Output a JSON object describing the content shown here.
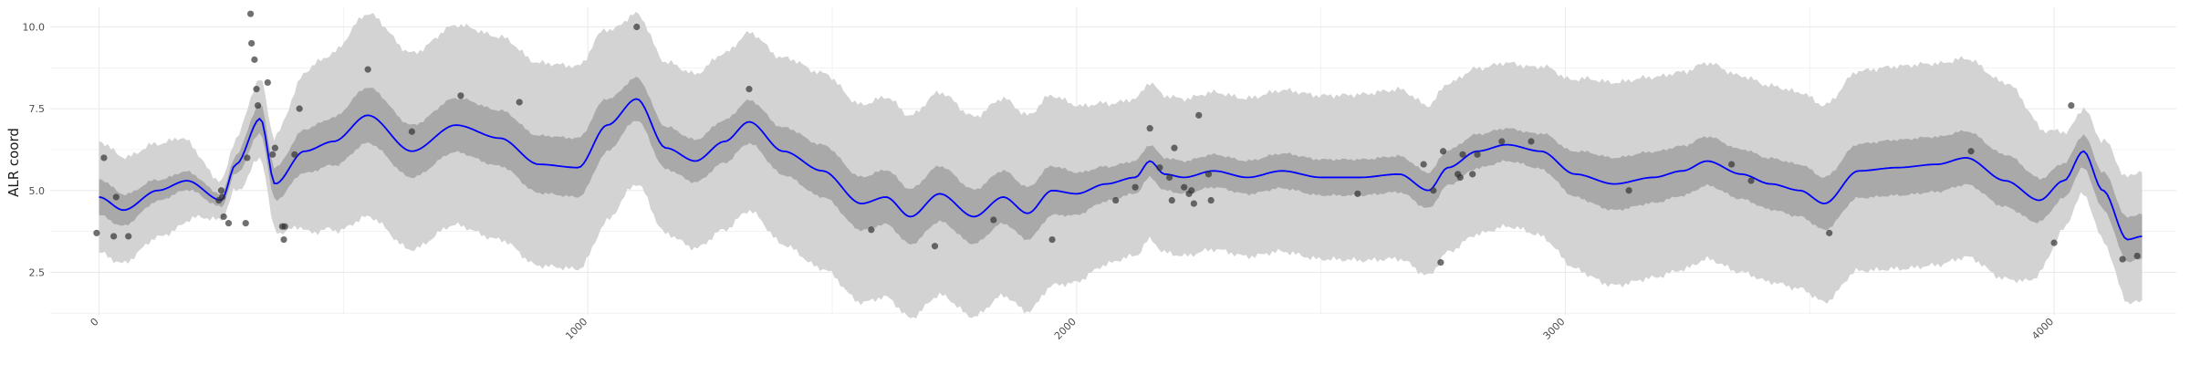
{
  "chart_data": {
    "type": "line",
    "title": "",
    "xlabel": "",
    "ylabel": "ALR coord",
    "xlim": [
      -100,
      4250
    ],
    "ylim": [
      1.2,
      10.6
    ],
    "grid": true,
    "x_ticks": [
      0,
      1000,
      2000,
      3000,
      4000
    ],
    "x_tick_labels": [
      "0",
      "1000",
      "2000",
      "3000",
      "4000"
    ],
    "y_ticks": [
      2.5,
      5.0,
      7.5,
      10.0
    ],
    "y_tick_labels": [
      "2.5",
      "5.0",
      "7.5",
      "10.0"
    ],
    "colors": {
      "line": "#0000ff",
      "inner_band": "#a9a9a9",
      "outer_band": "#d3d3d3",
      "points": "#333333",
      "grid": "#ebebeb"
    },
    "mean_curve": {
      "x": [
        0,
        50,
        120,
        180,
        250,
        280,
        330,
        360,
        420,
        480,
        550,
        640,
        730,
        820,
        900,
        980,
        1040,
        1100,
        1160,
        1220,
        1280,
        1330,
        1400,
        1480,
        1560,
        1610,
        1660,
        1720,
        1790,
        1850,
        1900,
        1950,
        2000,
        2060,
        2120,
        2150,
        2180,
        2220,
        2280,
        2350,
        2420,
        2500,
        2580,
        2660,
        2720,
        2760,
        2820,
        2880,
        2950,
        3020,
        3100,
        3180,
        3240,
        3290,
        3360,
        3420,
        3480,
        3530,
        3600,
        3680,
        3760,
        3820,
        3900,
        3970,
        4020,
        4060,
        4100,
        4150,
        4180
      ],
      "y": [
        4.8,
        4.4,
        5.0,
        5.3,
        4.7,
        5.8,
        7.2,
        5.2,
        6.2,
        6.5,
        7.3,
        6.2,
        7.0,
        6.6,
        5.8,
        5.7,
        7.0,
        7.8,
        6.3,
        5.9,
        6.5,
        7.1,
        6.2,
        5.6,
        4.6,
        4.8,
        4.2,
        4.9,
        4.2,
        4.8,
        4.3,
        5.0,
        4.9,
        5.2,
        5.4,
        5.9,
        5.5,
        5.4,
        5.6,
        5.4,
        5.6,
        5.4,
        5.4,
        5.5,
        5.0,
        5.7,
        6.2,
        6.4,
        6.2,
        5.5,
        5.2,
        5.4,
        5.6,
        5.9,
        5.5,
        5.2,
        5.0,
        4.6,
        5.6,
        5.7,
        5.8,
        6.0,
        5.3,
        4.7,
        5.3,
        6.2,
        5.0,
        3.5,
        3.6
      ]
    },
    "band_widths": {
      "x": [
        0,
        150,
        250,
        330,
        450,
        550,
        650,
        800,
        1000,
        1100,
        1300,
        1500,
        1700,
        1900,
        2100,
        2300,
        2500,
        2700,
        2900,
        3100,
        3300,
        3500,
        3700,
        3900,
        4050,
        4180
      ],
      "inner_half": [
        0.55,
        0.3,
        0.2,
        0.45,
        0.7,
        0.85,
        0.8,
        0.85,
        0.9,
        0.65,
        0.65,
        0.8,
        0.85,
        0.8,
        0.5,
        0.5,
        0.55,
        0.55,
        0.5,
        0.8,
        0.75,
        0.8,
        0.85,
        0.8,
        0.5,
        0.7
      ],
      "outer_half": [
        1.7,
        1.4,
        0.6,
        1.2,
        2.6,
        3.1,
        3.0,
        3.1,
        3.1,
        2.6,
        2.7,
        3.0,
        3.1,
        3.0,
        2.4,
        2.4,
        2.5,
        2.6,
        2.5,
        3.1,
        3.0,
        3.0,
        3.1,
        3.0,
        1.3,
        2.0
      ]
    },
    "points": [
      {
        "x": -5,
        "y": 3.7
      },
      {
        "x": 10,
        "y": 6.0
      },
      {
        "x": 30,
        "y": 3.6
      },
      {
        "x": 35,
        "y": 4.8
      },
      {
        "x": 60,
        "y": 3.6
      },
      {
        "x": 245,
        "y": 4.7
      },
      {
        "x": 250,
        "y": 5.0
      },
      {
        "x": 252,
        "y": 4.8
      },
      {
        "x": 255,
        "y": 4.2
      },
      {
        "x": 265,
        "y": 4.0
      },
      {
        "x": 300,
        "y": 4.0
      },
      {
        "x": 303,
        "y": 6.0
      },
      {
        "x": 310,
        "y": 10.4
      },
      {
        "x": 312,
        "y": 9.5
      },
      {
        "x": 318,
        "y": 9.0
      },
      {
        "x": 322,
        "y": 8.1
      },
      {
        "x": 325,
        "y": 7.6
      },
      {
        "x": 345,
        "y": 8.3
      },
      {
        "x": 355,
        "y": 6.1
      },
      {
        "x": 360,
        "y": 6.3
      },
      {
        "x": 375,
        "y": 3.9
      },
      {
        "x": 378,
        "y": 3.5
      },
      {
        "x": 380,
        "y": 3.9
      },
      {
        "x": 400,
        "y": 6.1
      },
      {
        "x": 410,
        "y": 7.5
      },
      {
        "x": 550,
        "y": 8.7
      },
      {
        "x": 640,
        "y": 6.8
      },
      {
        "x": 740,
        "y": 7.9
      },
      {
        "x": 860,
        "y": 7.7
      },
      {
        "x": 1100,
        "y": 10.0
      },
      {
        "x": 1330,
        "y": 8.1
      },
      {
        "x": 1580,
        "y": 3.8
      },
      {
        "x": 1710,
        "y": 3.3
      },
      {
        "x": 1830,
        "y": 4.1
      },
      {
        "x": 1950,
        "y": 3.5
      },
      {
        "x": 2080,
        "y": 4.7
      },
      {
        "x": 2120,
        "y": 5.1
      },
      {
        "x": 2150,
        "y": 6.9
      },
      {
        "x": 2170,
        "y": 5.7
      },
      {
        "x": 2190,
        "y": 5.4
      },
      {
        "x": 2195,
        "y": 4.7
      },
      {
        "x": 2200,
        "y": 6.3
      },
      {
        "x": 2220,
        "y": 5.1
      },
      {
        "x": 2230,
        "y": 4.9
      },
      {
        "x": 2235,
        "y": 5.0
      },
      {
        "x": 2240,
        "y": 4.6
      },
      {
        "x": 2250,
        "y": 7.3
      },
      {
        "x": 2270,
        "y": 5.5
      },
      {
        "x": 2275,
        "y": 4.7
      },
      {
        "x": 2575,
        "y": 4.9
      },
      {
        "x": 2710,
        "y": 5.8
      },
      {
        "x": 2730,
        "y": 5.0
      },
      {
        "x": 2745,
        "y": 2.8
      },
      {
        "x": 2750,
        "y": 6.2
      },
      {
        "x": 2780,
        "y": 5.5
      },
      {
        "x": 2785,
        "y": 5.4
      },
      {
        "x": 2790,
        "y": 6.1
      },
      {
        "x": 2810,
        "y": 5.5
      },
      {
        "x": 2820,
        "y": 6.1
      },
      {
        "x": 2870,
        "y": 6.5
      },
      {
        "x": 2930,
        "y": 6.5
      },
      {
        "x": 3130,
        "y": 5.0
      },
      {
        "x": 3340,
        "y": 5.8
      },
      {
        "x": 3380,
        "y": 5.3
      },
      {
        "x": 3540,
        "y": 3.7
      },
      {
        "x": 3830,
        "y": 6.2
      },
      {
        "x": 4000,
        "y": 3.4
      },
      {
        "x": 4035,
        "y": 7.6
      },
      {
        "x": 4140,
        "y": 2.9
      },
      {
        "x": 4170,
        "y": 3.0
      }
    ]
  }
}
